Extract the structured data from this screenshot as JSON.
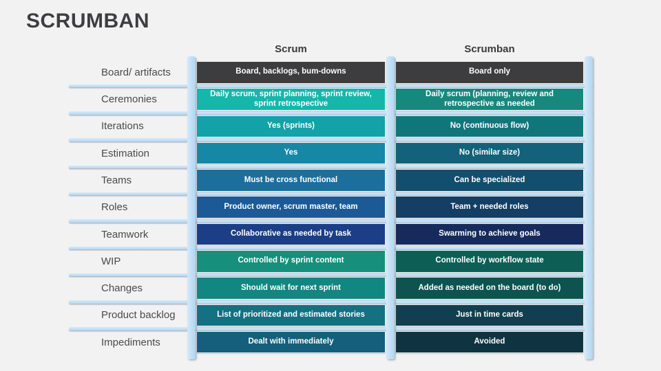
{
  "slide": {
    "title": "SCRUMBAN",
    "background_color": "#f2f2f3",
    "accent_bar_color": "#b9dcf4"
  },
  "table": {
    "columns": {
      "scrum": "Scrum",
      "scrumban": "Scrumban"
    },
    "rows": [
      {
        "label": "Board/ artifacts",
        "scrum": "Board, backlogs, bum-downs",
        "scrumban": "Board only",
        "scrum_color": "#3D3D3F",
        "scrumban_color": "#3D3D3F"
      },
      {
        "label": "Ceremonies",
        "scrum": "Daily scrum, sprint planning, sprint review, sprint retrospective",
        "scrumban": "Daily scrum (planning, review and retrospective as needed",
        "scrum_color": "#15B7AA",
        "scrumban_color": "#17887D"
      },
      {
        "label": "Iterations",
        "scrum": "Yes (sprints)",
        "scrumban": "No (continuous flow)",
        "scrum_color": "#12A2A8",
        "scrumban_color": "#11767C"
      },
      {
        "label": "Estimation",
        "scrum": "Yes",
        "scrumban": "No (similar size)",
        "scrum_color": "#1787A6",
        "scrumban_color": "#13617A"
      },
      {
        "label": "Teams",
        "scrum": "Must be cross functional",
        "scrumban": "Can be specialized",
        "scrum_color": "#1A6F9D",
        "scrumban_color": "#134E6E"
      },
      {
        "label": "Roles",
        "scrum": "Product owner, scrum master, team",
        "scrumban": "Team + needed roles",
        "scrum_color": "#1B5A96",
        "scrumban_color": "#143E63"
      },
      {
        "label": "Teamwork",
        "scrum": "Collaborative as needed by task",
        "scrumban": "Swarming to achieve goals",
        "scrum_color": "#1B3E86",
        "scrumban_color": "#162A5C"
      },
      {
        "label": "WIP",
        "scrum": "Controlled by sprint content",
        "scrumban": "Controlled by workflow state",
        "scrum_color": "#16907B",
        "scrumban_color": "#0D5F55"
      },
      {
        "label": "Changes",
        "scrum": "Should wait for next sprint",
        "scrumban": "Added as needed on the board (to do)",
        "scrum_color": "#128680",
        "scrumban_color": "#0D5450"
      },
      {
        "label": "Product backlog",
        "scrum": "List of prioritized and estimated stories",
        "scrumban": "Just in time cards",
        "scrum_color": "#157081",
        "scrumban_color": "#123F4F"
      },
      {
        "label": "Impediments",
        "scrum": "Dealt with immediately",
        "scrumban": "Avoided",
        "scrum_color": "#155F7C",
        "scrumban_color": "#0E3441"
      }
    ]
  }
}
